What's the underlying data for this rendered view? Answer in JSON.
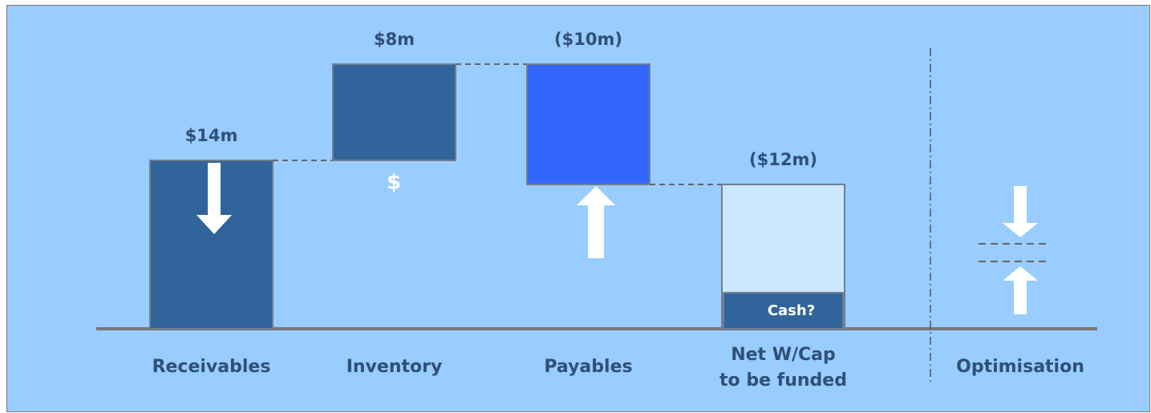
{
  "chart_data": {
    "type": "waterfall",
    "categories": [
      "Receivables",
      "Inventory",
      "Payables",
      "Net W/Cap\nto be funded"
    ],
    "values": [
      14,
      8,
      -10,
      -12
    ],
    "value_labels": [
      "$14m",
      "$8m",
      "($10m)",
      "($12m)"
    ],
    "colors": [
      "#31649a",
      "#31649a",
      "#3366ff",
      "#cce8ff"
    ],
    "inventory_note": "$",
    "cash_label": "Cash?",
    "side_label": "Optimisation"
  }
}
